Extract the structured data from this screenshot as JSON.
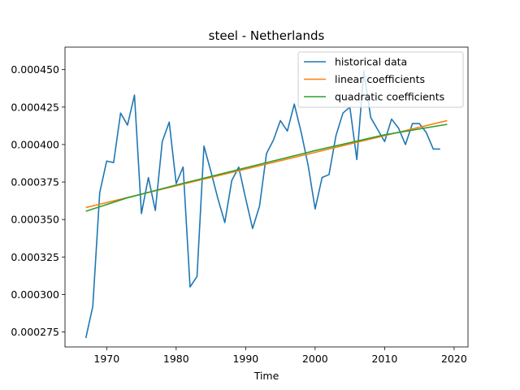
{
  "chart_data": {
    "type": "line",
    "title": "steel - Netherlands",
    "xlabel": "Time",
    "ylabel": "",
    "xlim": [
      1964,
      2022
    ],
    "ylim": [
      0.000265,
      0.000465
    ],
    "xticks": [
      1970,
      1980,
      1990,
      2000,
      2010,
      2020
    ],
    "yticks": [
      0.000275,
      0.0003,
      0.000325,
      0.00035,
      0.000375,
      0.0004,
      0.000425,
      0.00045
    ],
    "ytick_labels": [
      "0.000275",
      "0.000300",
      "0.000325",
      "0.000350",
      "0.000375",
      "0.000400",
      "0.000425",
      "0.000450"
    ],
    "legend_position": "top-right",
    "grid": false,
    "series": [
      {
        "name": "historical data",
        "color": "#1f77b4",
        "x": [
          1967,
          1968,
          1969,
          1970,
          1971,
          1972,
          1973,
          1974,
          1975,
          1976,
          1977,
          1978,
          1979,
          1980,
          1981,
          1982,
          1983,
          1984,
          1985,
          1986,
          1987,
          1988,
          1989,
          1990,
          1991,
          1992,
          1993,
          1994,
          1995,
          1996,
          1997,
          1998,
          1999,
          2000,
          2001,
          2002,
          2003,
          2004,
          2005,
          2006,
          2007,
          2008,
          2009,
          2010,
          2011,
          2012,
          2013,
          2014,
          2015,
          2016,
          2017,
          2018
        ],
        "y": [
          0.000271,
          0.000292,
          0.000368,
          0.000389,
          0.000388,
          0.000421,
          0.000413,
          0.000433,
          0.000354,
          0.000378,
          0.000356,
          0.000402,
          0.000415,
          0.000374,
          0.000385,
          0.000305,
          0.000312,
          0.000399,
          0.000382,
          0.000364,
          0.000348,
          0.000376,
          0.000385,
          0.000364,
          0.000344,
          0.000359,
          0.000394,
          0.000403,
          0.000416,
          0.000409,
          0.000427,
          0.000408,
          0.000386,
          0.000357,
          0.000378,
          0.00038,
          0.000406,
          0.000421,
          0.000425,
          0.00039,
          0.000449,
          0.000418,
          0.00041,
          0.000402,
          0.000417,
          0.000411,
          0.0004,
          0.000414,
          0.000414,
          0.000408,
          0.000397,
          0.000397
        ]
      },
      {
        "name": "linear coefficients",
        "color": "#ff7f0e",
        "x": [
          1967,
          2019
        ],
        "y": [
          0.000358,
          0.000416
        ]
      },
      {
        "name": "quadratic coefficients",
        "color": "#2ca02c",
        "x": [
          1967,
          1973,
          1980,
          1990,
          2000,
          2010,
          2019
        ],
        "y": [
          0.0003555,
          0.0003645,
          0.000373,
          0.0003845,
          0.000396,
          0.0004065,
          0.0004135
        ]
      }
    ]
  }
}
